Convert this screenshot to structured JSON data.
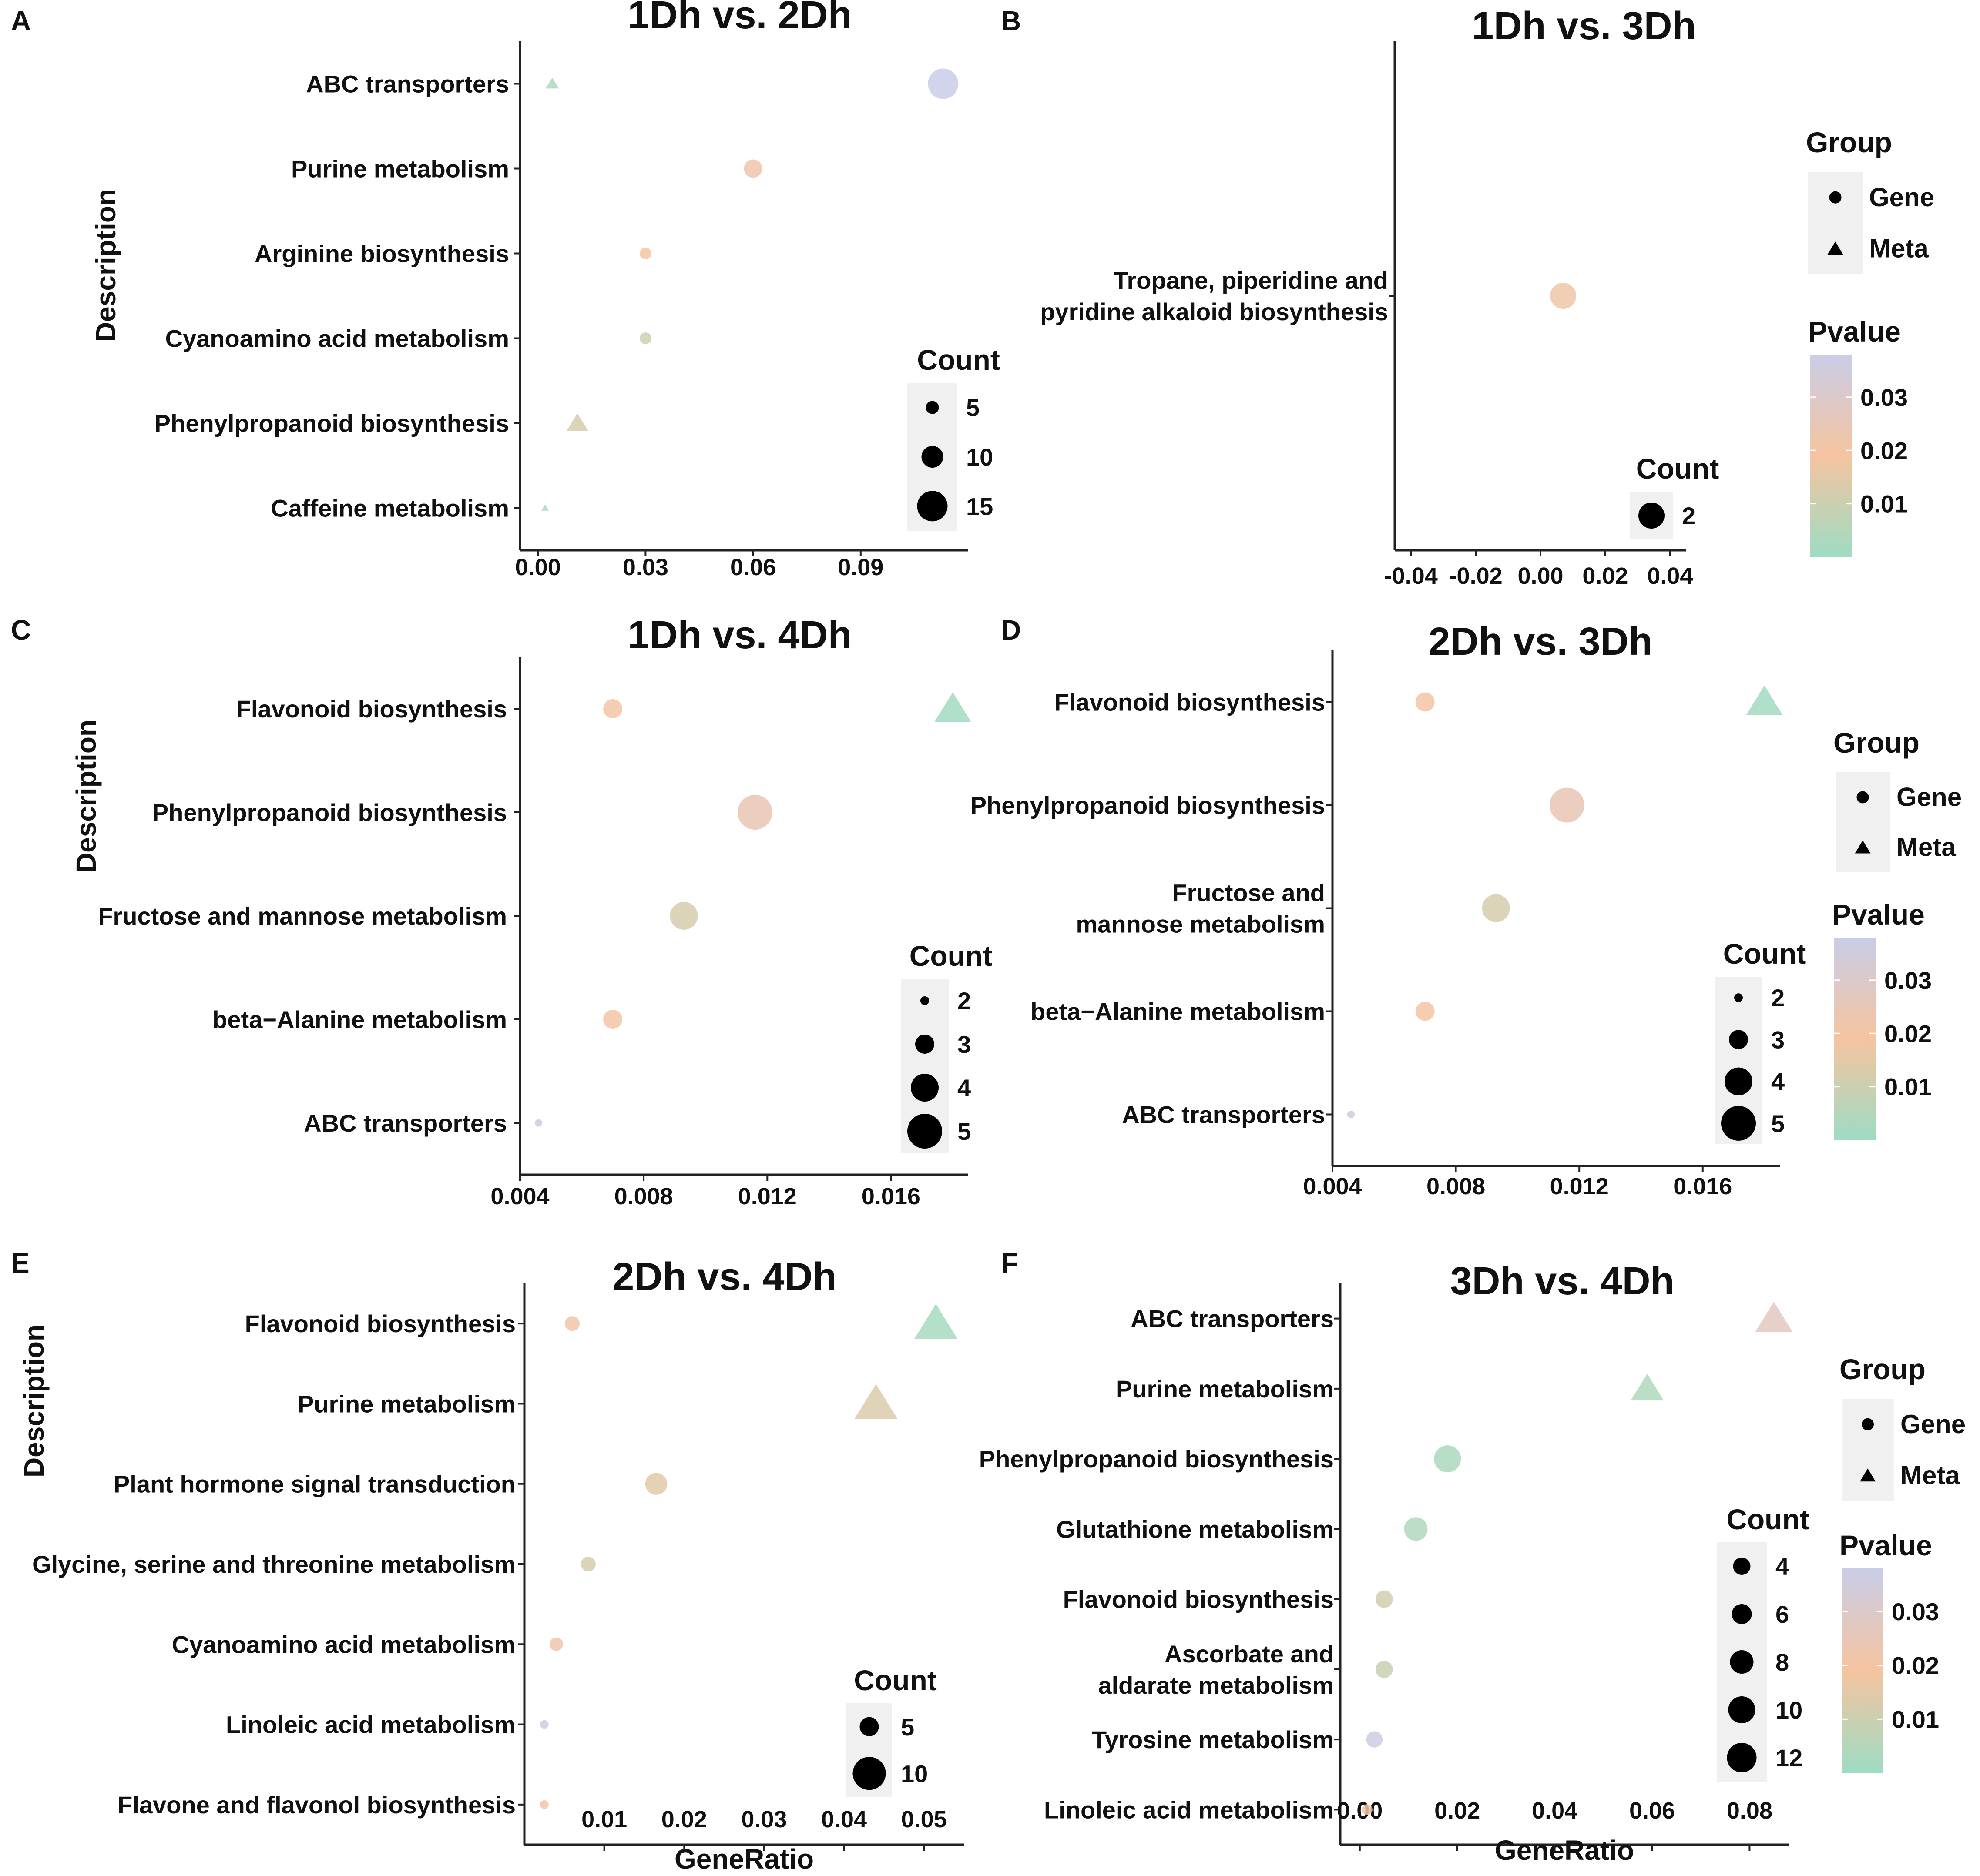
{
  "chart_data": [
    {
      "panel": "A",
      "type": "scatter",
      "title": "1Dh vs. 2Dh",
      "ylabel": "Description",
      "xlabel": "",
      "xlim": [
        -0.005,
        0.12
      ],
      "xticks": [
        0.0,
        0.03,
        0.06,
        0.09
      ],
      "xtick_labels": [
        "0.00",
        "0.03",
        "0.06",
        "0.09"
      ],
      "categories": [
        "ABC transporters",
        "Purine metabolism",
        "Arginine biosynthesis",
        "Cyanoamino acid metabolism",
        "Phenylpropanoid biosynthesis",
        "Caffeine metabolism"
      ],
      "category_labels": [
        [
          "ABC transporters"
        ],
        [
          "Purine metabolism"
        ],
        [
          "Arginine biosynthesis"
        ],
        [
          "Cyanoamino acid metabolism"
        ],
        [
          "Phenylpropanoid biosynthesis"
        ],
        [
          "Caffeine metabolism"
        ]
      ],
      "points": [
        {
          "category": "ABC transporters",
          "x": 0.004,
          "count": 3,
          "group": "Meta",
          "pvalue": 0.003
        },
        {
          "category": "ABC transporters",
          "x": 0.113,
          "count": 15,
          "group": "Gene",
          "pvalue": 0.038
        },
        {
          "category": "Purine metabolism",
          "x": 0.06,
          "count": 8,
          "group": "Gene",
          "pvalue": 0.022
        },
        {
          "category": "Arginine biosynthesis",
          "x": 0.03,
          "count": 4,
          "group": "Gene",
          "pvalue": 0.019
        },
        {
          "category": "Cyanoamino acid metabolism",
          "x": 0.03,
          "count": 4,
          "group": "Gene",
          "pvalue": 0.01
        },
        {
          "category": "Phenylpropanoid biosynthesis",
          "x": 0.011,
          "count": 7,
          "group": "Meta",
          "pvalue": 0.012
        },
        {
          "category": "Caffeine metabolism",
          "x": 0.002,
          "count": 1,
          "group": "Meta",
          "pvalue": 0.003
        }
      ],
      "size_legend": {
        "title": "Count",
        "values": [
          5,
          10,
          15
        ],
        "labels": [
          "5",
          "10",
          "15"
        ]
      },
      "color_legend": null,
      "group_legend": null
    },
    {
      "panel": "B",
      "type": "scatter",
      "title": "1Dh vs. 3Dh",
      "ylabel": "",
      "xlabel": "",
      "xlim": [
        -0.045,
        0.045
      ],
      "xticks": [
        -0.04,
        -0.02,
        0.0,
        0.02,
        0.04
      ],
      "xtick_labels": [
        "-0.04",
        "-0.02",
        "0.00",
        "0.02",
        "0.04"
      ],
      "categories": [
        "Tropane, piperidine and pyridine alkaloid biosynthesis"
      ],
      "category_labels": [
        [
          "Tropane, piperidine and",
          "pyridine alkaloid biosynthesis"
        ]
      ],
      "points": [
        {
          "category": "Tropane, piperidine and pyridine alkaloid biosynthesis",
          "x": 0.007,
          "count": 2,
          "group": "Gene",
          "pvalue": 0.021
        }
      ],
      "size_legend": {
        "title": "Count",
        "values": [
          2
        ],
        "labels": [
          "2"
        ]
      },
      "color_legend": {
        "title": "Pvalue",
        "ticks": [
          "0.03",
          "0.02",
          "0.01"
        ],
        "tick_values": [
          0.03,
          0.02,
          0.01
        ],
        "range": [
          0.0,
          0.038
        ]
      },
      "group_legend": {
        "title": "Group",
        "items": [
          "Gene",
          "Meta"
        ]
      }
    },
    {
      "panel": "C",
      "type": "scatter",
      "title": "1Dh vs. 4Dh",
      "ylabel": "Description",
      "xlabel": "",
      "xlim": [
        0.004,
        0.0185
      ],
      "xticks": [
        0.004,
        0.008,
        0.012,
        0.016
      ],
      "xtick_labels": [
        "0.004",
        "0.008",
        "0.012",
        "0.016"
      ],
      "categories": [
        "Flavonoid biosynthesis",
        "Phenylpropanoid biosynthesis",
        "Fructose and mannose metabolism",
        "beta−Alanine metabolism",
        "ABC transporters"
      ],
      "category_labels": [
        [
          "Flavonoid biosynthesis"
        ],
        [
          "Phenylpropanoid biosynthesis"
        ],
        [
          "Fructose and mannose metabolism"
        ],
        [
          "beta−Alanine metabolism"
        ],
        [
          "ABC transporters"
        ]
      ],
      "points": [
        {
          "category": "Flavonoid biosynthesis",
          "x": 0.007,
          "count": 3,
          "group": "Gene",
          "pvalue": 0.02
        },
        {
          "category": "Flavonoid biosynthesis",
          "x": 0.018,
          "count": 4,
          "group": "Meta",
          "pvalue": 0.001
        },
        {
          "category": "Phenylpropanoid biosynthesis",
          "x": 0.0116,
          "count": 5,
          "group": "Gene",
          "pvalue": 0.024
        },
        {
          "category": "Fructose and mannose metabolism",
          "x": 0.0093,
          "count": 4,
          "group": "Gene",
          "pvalue": 0.012
        },
        {
          "category": "beta−Alanine metabolism",
          "x": 0.007,
          "count": 3,
          "group": "Gene",
          "pvalue": 0.02
        },
        {
          "category": "ABC transporters",
          "x": 0.0046,
          "count": 1.5,
          "group": "Gene",
          "pvalue": 0.036
        }
      ],
      "size_legend": {
        "title": "Count",
        "values": [
          2,
          3,
          4,
          5
        ],
        "labels": [
          "2",
          "3",
          "4",
          "5"
        ]
      },
      "color_legend": null,
      "group_legend": null
    },
    {
      "panel": "D",
      "type": "scatter",
      "title": "2Dh vs. 3Dh",
      "ylabel": "",
      "xlabel": "",
      "xlim": [
        0.004,
        0.0185
      ],
      "xticks": [
        0.004,
        0.008,
        0.012,
        0.016
      ],
      "xtick_labels": [
        "0.004",
        "0.008",
        "0.012",
        "0.016"
      ],
      "categories": [
        "Flavonoid biosynthesis",
        "Phenylpropanoid biosynthesis",
        "Fructose and mannose metabolism",
        "beta−Alanine metabolism",
        "ABC transporters"
      ],
      "category_labels": [
        [
          "Flavonoid biosynthesis"
        ],
        [
          "Phenylpropanoid biosynthesis"
        ],
        [
          "Fructose and",
          "mannose metabolism"
        ],
        [
          "beta−Alanine metabolism"
        ],
        [
          "ABC transporters"
        ]
      ],
      "points": [
        {
          "category": "Flavonoid biosynthesis",
          "x": 0.007,
          "count": 3,
          "group": "Gene",
          "pvalue": 0.02
        },
        {
          "category": "Flavonoid biosynthesis",
          "x": 0.018,
          "count": 4,
          "group": "Meta",
          "pvalue": 0.001
        },
        {
          "category": "Phenylpropanoid biosynthesis",
          "x": 0.0116,
          "count": 5,
          "group": "Gene",
          "pvalue": 0.024
        },
        {
          "category": "Fructose and mannose metabolism",
          "x": 0.0093,
          "count": 4,
          "group": "Gene",
          "pvalue": 0.012
        },
        {
          "category": "beta−Alanine metabolism",
          "x": 0.007,
          "count": 3,
          "group": "Gene",
          "pvalue": 0.02
        },
        {
          "category": "ABC transporters",
          "x": 0.0046,
          "count": 1.5,
          "group": "Gene",
          "pvalue": 0.036
        }
      ],
      "size_legend": {
        "title": "Count",
        "values": [
          2,
          3,
          4,
          5
        ],
        "labels": [
          "2",
          "3",
          "4",
          "5"
        ]
      },
      "color_legend": {
        "title": "Pvalue",
        "ticks": [
          "0.03",
          "0.02",
          "0.01"
        ],
        "tick_values": [
          0.03,
          0.02,
          0.01
        ],
        "range": [
          0.0,
          0.038
        ]
      },
      "group_legend": {
        "title": "Group",
        "items": [
          "Gene",
          "Meta"
        ]
      }
    },
    {
      "panel": "E",
      "type": "scatter",
      "title": "2Dh vs. 4Dh",
      "ylabel": "Description",
      "xlabel": "GeneRatio",
      "xlim": [
        0.0,
        0.055
      ],
      "xticks": [
        0.01,
        0.02,
        0.03,
        0.04,
        0.05
      ],
      "xtick_labels": [
        "0.01",
        "0.02",
        "0.03",
        "0.04",
        "0.05"
      ],
      "categories": [
        "Flavonoid biosynthesis",
        "Purine metabolism",
        "Plant hormone signal transduction",
        "Glycine, serine and threonine metabolism",
        "Cyanoamino acid metabolism",
        "Linoleic acid metabolism",
        "Flavone and flavonol biosynthesis"
      ],
      "category_labels": [
        [
          "Flavonoid biosynthesis"
        ],
        [
          "Purine metabolism"
        ],
        [
          "Plant hormone signal transduction"
        ],
        [
          "Glycine, serine and threonine metabolism"
        ],
        [
          "Cyanoamino acid metabolism"
        ],
        [
          "Linoleic acid metabolism"
        ],
        [
          "Flavone and flavonol biosynthesis"
        ]
      ],
      "points": [
        {
          "category": "Flavonoid biosynthesis",
          "x": 0.006,
          "count": 3,
          "group": "Gene",
          "pvalue": 0.021
        },
        {
          "category": "Flavonoid biosynthesis",
          "x": 0.0515,
          "count": 11,
          "group": "Meta",
          "pvalue": 0.002
        },
        {
          "category": "Purine metabolism",
          "x": 0.044,
          "count": 10,
          "group": "Meta",
          "pvalue": 0.013
        },
        {
          "category": "Plant hormone signal transduction",
          "x": 0.0165,
          "count": 6,
          "group": "Gene",
          "pvalue": 0.015
        },
        {
          "category": "Glycine, serine and threonine metabolism",
          "x": 0.008,
          "count": 3,
          "group": "Gene",
          "pvalue": 0.012
        },
        {
          "category": "Cyanoamino acid metabolism",
          "x": 0.004,
          "count": 2.5,
          "group": "Gene",
          "pvalue": 0.022
        },
        {
          "category": "Linoleic acid metabolism",
          "x": 0.0025,
          "count": 1,
          "group": "Gene",
          "pvalue": 0.036
        },
        {
          "category": "Flavone and flavonol biosynthesis",
          "x": 0.0025,
          "count": 1,
          "group": "Gene",
          "pvalue": 0.02
        }
      ],
      "size_legend": {
        "title": "Count",
        "values": [
          5,
          10
        ],
        "labels": [
          "5",
          "10"
        ]
      },
      "color_legend": null,
      "group_legend": null
    },
    {
      "panel": "F",
      "type": "scatter",
      "title": "3Dh vs. 4Dh",
      "ylabel": "",
      "xlabel": "GeneRatio",
      "xlim": [
        -0.004,
        0.088
      ],
      "xticks": [
        0.0,
        0.02,
        0.04,
        0.06,
        0.08
      ],
      "xtick_labels": [
        "0.00",
        "0.02",
        "0.04",
        "0.06",
        "0.08"
      ],
      "categories": [
        "ABC transporters",
        "Purine metabolism",
        "Phenylpropanoid biosynthesis",
        "Glutathione metabolism",
        "Flavonoid biosynthesis",
        "Ascorbate and aldarate metabolism",
        "Tyrosine metabolism",
        "Linoleic acid metabolism"
      ],
      "category_labels": [
        [
          "ABC transporters"
        ],
        [
          "Purine metabolism"
        ],
        [
          "Phenylpropanoid biosynthesis"
        ],
        [
          "Glutathione metabolism"
        ],
        [
          "Flavonoid biosynthesis"
        ],
        [
          "Ascorbate and",
          "aldarate metabolism"
        ],
        [
          "Tyrosine metabolism"
        ],
        [
          "Linoleic acid metabolism"
        ]
      ],
      "points": [
        {
          "category": "ABC transporters",
          "x": 0.085,
          "count": 11,
          "group": "Meta",
          "pvalue": 0.027
        },
        {
          "category": "Purine metabolism",
          "x": 0.059,
          "count": 9,
          "group": "Meta",
          "pvalue": 0.004
        },
        {
          "category": "Phenylpropanoid biosynthesis",
          "x": 0.018,
          "count": 10,
          "group": "Gene",
          "pvalue": 0.003
        },
        {
          "category": "Glutathione metabolism",
          "x": 0.0115,
          "count": 8,
          "group": "Gene",
          "pvalue": 0.004
        },
        {
          "category": "Flavonoid biosynthesis",
          "x": 0.005,
          "count": 4,
          "group": "Gene",
          "pvalue": 0.011
        },
        {
          "category": "Ascorbate and aldarate metabolism",
          "x": 0.005,
          "count": 4,
          "group": "Gene",
          "pvalue": 0.009
        },
        {
          "category": "Tyrosine metabolism",
          "x": 0.003,
          "count": 3.5,
          "group": "Gene",
          "pvalue": 0.037
        },
        {
          "category": "Linoleic acid metabolism",
          "x": 0.0015,
          "count": 1.5,
          "group": "Gene",
          "pvalue": 0.02
        }
      ],
      "size_legend": {
        "title": "Count",
        "values": [
          4,
          6,
          8,
          10,
          12
        ],
        "labels": [
          "4",
          "6",
          "8",
          "10",
          "12"
        ]
      },
      "color_legend": {
        "title": "Pvalue",
        "ticks": [
          "0.03",
          "0.02",
          "0.01"
        ],
        "tick_values": [
          0.03,
          0.02,
          0.01
        ],
        "range": [
          0.0,
          0.038
        ]
      },
      "group_legend": {
        "title": "Group",
        "items": [
          "Gene",
          "Meta"
        ]
      }
    }
  ],
  "colors": {
    "text": "#111111",
    "axis": "#222222",
    "legend_bg": "#f0f0f0",
    "palette_low": "#9edcc3",
    "palette_mid": "#f5c4a0",
    "palette_high": "#c9cde8"
  }
}
